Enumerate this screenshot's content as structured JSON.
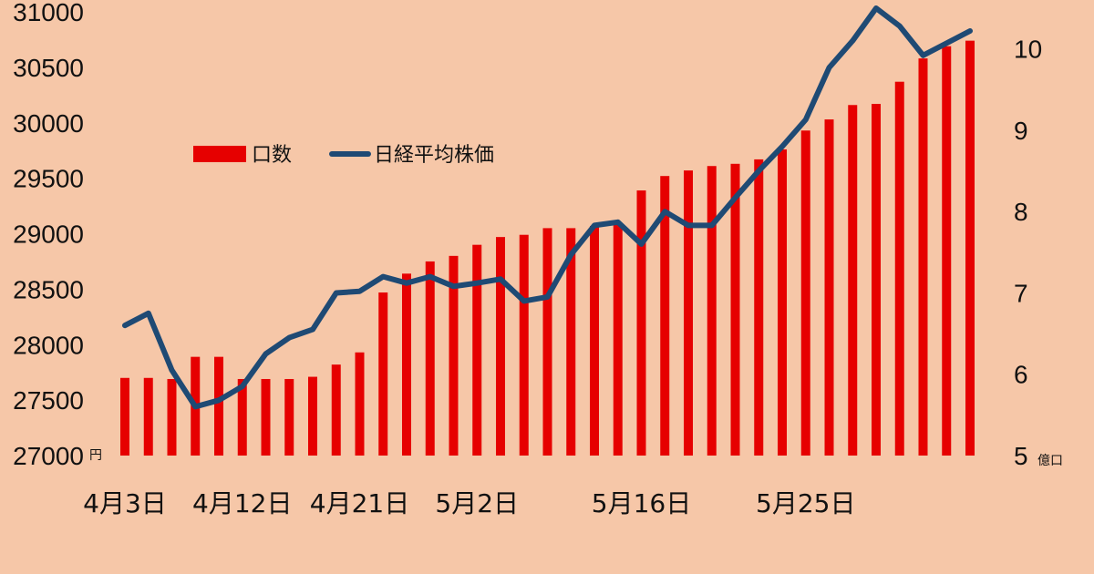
{
  "chart_data": {
    "type": "bar+line",
    "title": "",
    "x_tick_labels": [
      "4月3日",
      "4月12日",
      "4月21日",
      "5月2日",
      "5月16日",
      "5月25日"
    ],
    "x_tick_indices": [
      0,
      5,
      10,
      15,
      22,
      29
    ],
    "left_axis": {
      "min": 27000,
      "max": 31000,
      "step": 500,
      "unit": "円",
      "ticks": [
        "27000",
        "27500",
        "28000",
        "28500",
        "29000",
        "29500",
        "30000",
        "30500",
        "31000"
      ]
    },
    "right_axis": {
      "min": 5,
      "max": 10.5,
      "unit": "億口",
      "ticks": [
        "5",
        "6",
        "7",
        "8",
        "9",
        "10"
      ],
      "tick_values": [
        5,
        6,
        7,
        8,
        9,
        10
      ]
    },
    "series": [
      {
        "name": "口数",
        "type": "bar",
        "axis": "left",
        "color": "#e60000",
        "values": [
          27700,
          27700,
          27690,
          27890,
          27890,
          27690,
          27690,
          27690,
          27710,
          27820,
          27930,
          28470,
          28640,
          28750,
          28800,
          28900,
          28970,
          28990,
          29050,
          29050,
          29070,
          29080,
          29390,
          29520,
          29570,
          29610,
          29630,
          29670,
          29760,
          29930,
          30030,
          30160,
          30170,
          30370,
          30580,
          30690,
          30740
        ]
      },
      {
        "name": "日経平均株価",
        "type": "line",
        "axis": "right",
        "color": "#1f4a74",
        "values": [
          6.6,
          6.75,
          6.05,
          5.6,
          5.68,
          5.85,
          6.25,
          6.45,
          6.55,
          7.0,
          7.02,
          7.2,
          7.12,
          7.2,
          7.08,
          7.12,
          7.17,
          6.9,
          6.95,
          7.47,
          7.83,
          7.87,
          7.6,
          8.0,
          7.83,
          7.83,
          8.17,
          8.5,
          8.8,
          9.13,
          9.77,
          10.1,
          10.5,
          10.28,
          9.92,
          10.07,
          10.22
        ]
      }
    ],
    "legend_position": "top-left-inside",
    "grid": false
  }
}
